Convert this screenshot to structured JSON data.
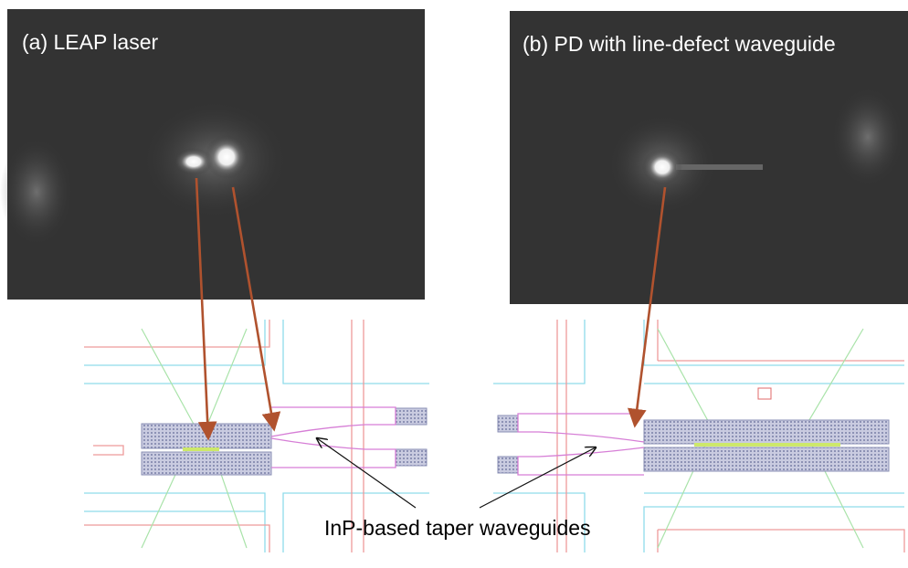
{
  "panels": [
    {
      "label": "(a) LEAP laser"
    },
    {
      "label": "(b) PD with line-defect waveguide"
    }
  ],
  "annotation": "InP-based taper waveguides"
}
